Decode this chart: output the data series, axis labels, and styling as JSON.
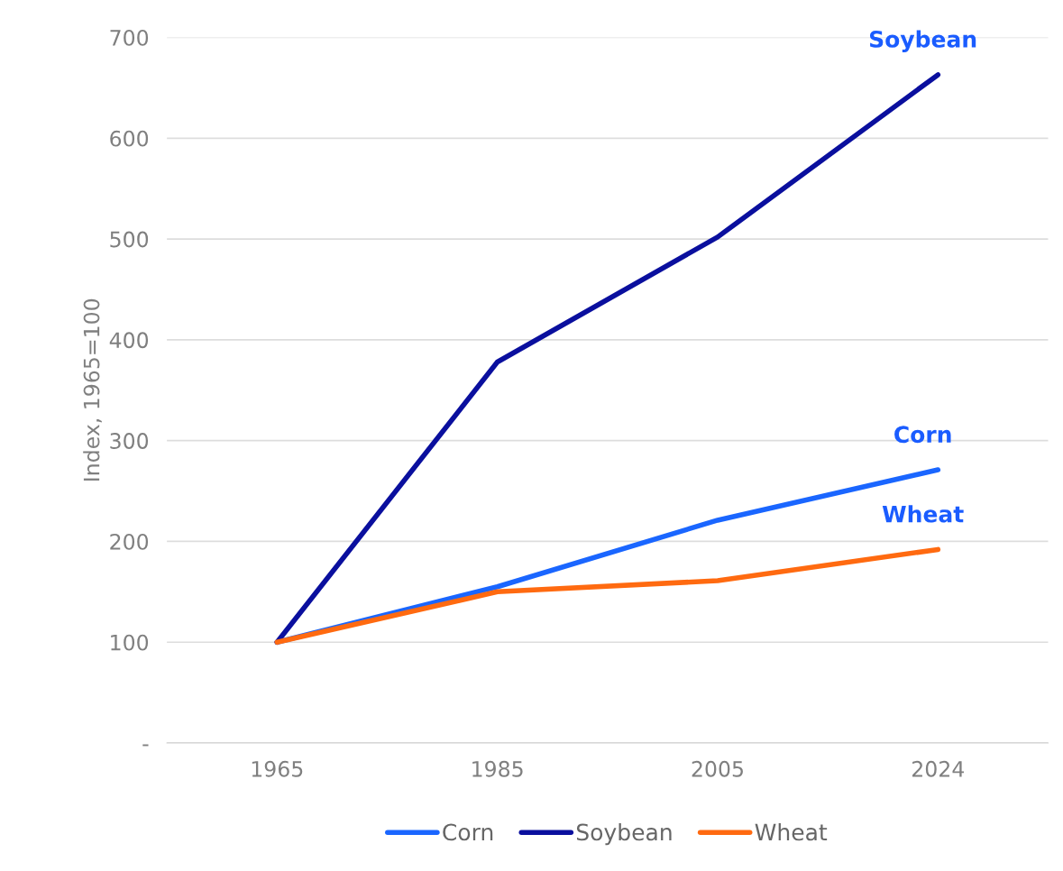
{
  "chart_data": {
    "type": "line",
    "ylabel": "Index, 1965=100",
    "categories": [
      "1965",
      "1985",
      "2005",
      "2024"
    ],
    "series": [
      {
        "name": "Corn",
        "color": "#1a66ff",
        "values": [
          100,
          155,
          221,
          271
        ]
      },
      {
        "name": "Soybean",
        "color": "#0a0f9e",
        "values": [
          100,
          378,
          502,
          663
        ]
      },
      {
        "name": "Wheat",
        "color": "#ff6a10",
        "values": [
          100,
          150,
          161,
          192
        ]
      }
    ],
    "annotations": [
      {
        "text": "Soybean",
        "x": "2024",
        "y": 663
      },
      {
        "text": "Corn",
        "x": "2024",
        "y": 271
      },
      {
        "text": "Wheat",
        "x": "2024",
        "y": 192
      }
    ],
    "ylim": [
      0,
      700
    ],
    "yticks": [
      {
        "value": 0,
        "label": "-"
      },
      100,
      200,
      300,
      400,
      500,
      600,
      700
    ],
    "grid": "y",
    "legend": "bottom",
    "marker": "none",
    "line_style": "solid"
  }
}
